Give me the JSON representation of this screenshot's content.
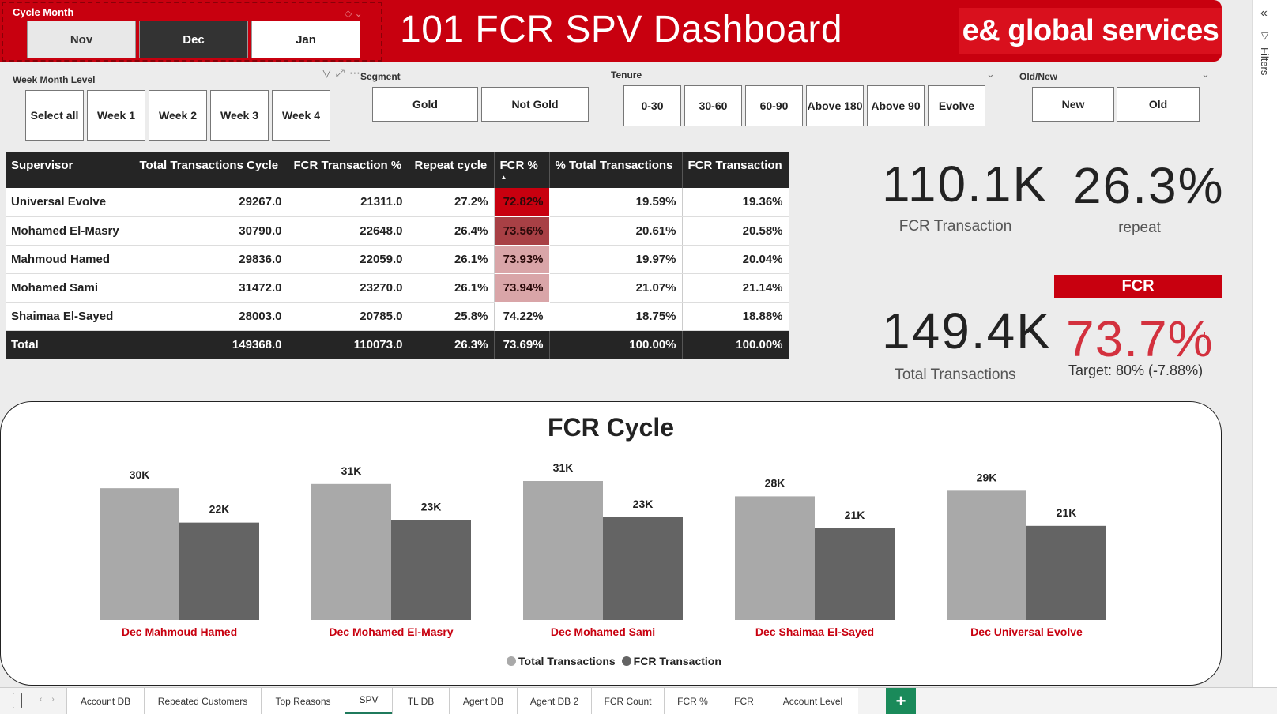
{
  "header": {
    "title": "101 FCR SPV Dashboard",
    "brand": "e& global services"
  },
  "cycle_month": {
    "label": "Cycle Month",
    "options": [
      "Nov",
      "Dec",
      "Jan"
    ],
    "selected": "Dec"
  },
  "week_month": {
    "label": "Week Month Level",
    "options": [
      "Select all",
      "Week 1",
      "Week 2",
      "Week 3",
      "Week 4"
    ]
  },
  "segment": {
    "label": "Segment",
    "options": [
      "Gold",
      "Not Gold"
    ]
  },
  "tenure": {
    "label": "Tenure",
    "options": [
      "0-30",
      "30-60",
      "60-90",
      "Above 180",
      "Above 90",
      "Evolve"
    ]
  },
  "old_new": {
    "label": "Old/New",
    "options": [
      "New",
      "Old"
    ]
  },
  "filters_pane": {
    "label": "Filters"
  },
  "table": {
    "columns": [
      "Supervisor",
      "Total Transactions Cycle",
      "FCR Transaction %",
      "Repeat cycle",
      "FCR %",
      "% Total Transactions",
      "FCR Transaction"
    ],
    "rows": [
      [
        "Universal Evolve",
        "29267.0",
        "21311.0",
        "27.2%",
        "72.82%",
        "19.59%",
        "19.36%"
      ],
      [
        "Mohamed El-Masry",
        "30790.0",
        "22648.0",
        "26.4%",
        "73.56%",
        "20.61%",
        "20.58%"
      ],
      [
        "Mahmoud Hamed",
        "29836.0",
        "22059.0",
        "26.1%",
        "73.93%",
        "19.97%",
        "20.04%"
      ],
      [
        "Mohamed Sami",
        "31472.0",
        "23270.0",
        "26.1%",
        "73.94%",
        "21.07%",
        "21.14%"
      ],
      [
        "Shaimaa El-Sayed",
        "28003.0",
        "20785.0",
        "25.8%",
        "74.22%",
        "18.75%",
        "18.88%"
      ]
    ],
    "total": [
      "Total",
      "149368.0",
      "110073.0",
      "26.3%",
      "73.69%",
      "100.00%",
      "100.00%"
    ],
    "fcr_heat_colors": [
      "#c8000f",
      "#a84045",
      "#d9a5a8",
      "#d9a5a8",
      "#ffffff"
    ]
  },
  "kpis": {
    "fcr_transaction": {
      "value": "110.1K",
      "label": "FCR Transaction"
    },
    "repeat": {
      "value": "26.3%",
      "label": "repeat"
    },
    "total_transactions": {
      "value": "149.4K",
      "label": "Total Transactions"
    },
    "fcr": {
      "header": "FCR",
      "value": "73.7%",
      "indicator": "!",
      "target": "Target: 80% (-7.88%)"
    }
  },
  "chart_data": {
    "type": "bar",
    "title": "FCR Cycle",
    "categories": [
      "Dec Mahmoud Hamed",
      "Dec Mohamed El-Masry",
      "Dec Mohamed Sami",
      "Dec Shaimaa El-Sayed",
      "Dec Universal Evolve"
    ],
    "series": [
      {
        "name": "Total Transactions",
        "values": [
          29836,
          30790,
          31472,
          28003,
          29267
        ],
        "labels": [
          "30K",
          "31K",
          "31K",
          "28K",
          "29K"
        ],
        "color": "#a9a9a9"
      },
      {
        "name": "FCR Transaction",
        "values": [
          22059,
          22648,
          23270,
          20785,
          21311
        ],
        "labels": [
          "22K",
          "23K",
          "23K",
          "21K",
          "21K"
        ],
        "color": "#646464"
      }
    ],
    "category_color": "#c8000f",
    "ylim": [
      0,
      31472
    ],
    "legend": "bottom-center",
    "grid": false
  },
  "sheet_tabs": {
    "tabs": [
      "Account DB",
      "Repeated Customers",
      "Top Reasons",
      "SPV",
      "TL DB",
      "Agent DB",
      "Agent DB 2",
      "FCR Count",
      "FCR %",
      "FCR",
      "Account Level"
    ],
    "active": "SPV",
    "add": "+"
  }
}
